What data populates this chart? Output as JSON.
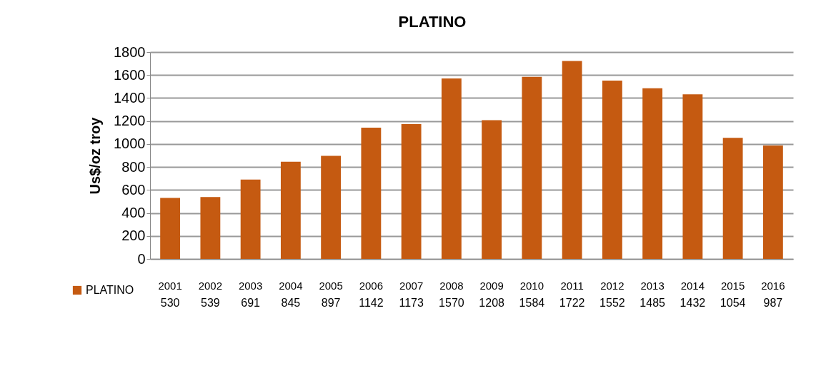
{
  "chart_data": {
    "type": "bar",
    "title": "PLATINO",
    "ylabel": "Us$/oz troy",
    "categories": [
      "2001",
      "2002",
      "2003",
      "2004",
      "2005",
      "2006",
      "2007",
      "2008",
      "2009",
      "2010",
      "2011",
      "2012",
      "2013",
      "2014",
      "2015",
      "2016"
    ],
    "series": [
      {
        "name": "PLATINO",
        "color": "#c55a11",
        "values": [
          530,
          539,
          691,
          845,
          897,
          1142,
          1173,
          1570,
          1208,
          1584,
          1722,
          1552,
          1485,
          1432,
          1054,
          987
        ]
      }
    ],
    "ylim": [
      0,
      1800
    ],
    "yticks": [
      0,
      200,
      400,
      600,
      800,
      1000,
      1200,
      1400,
      1600,
      1800
    ],
    "grid": "y",
    "legend": "bottom left",
    "data_labels": true
  }
}
